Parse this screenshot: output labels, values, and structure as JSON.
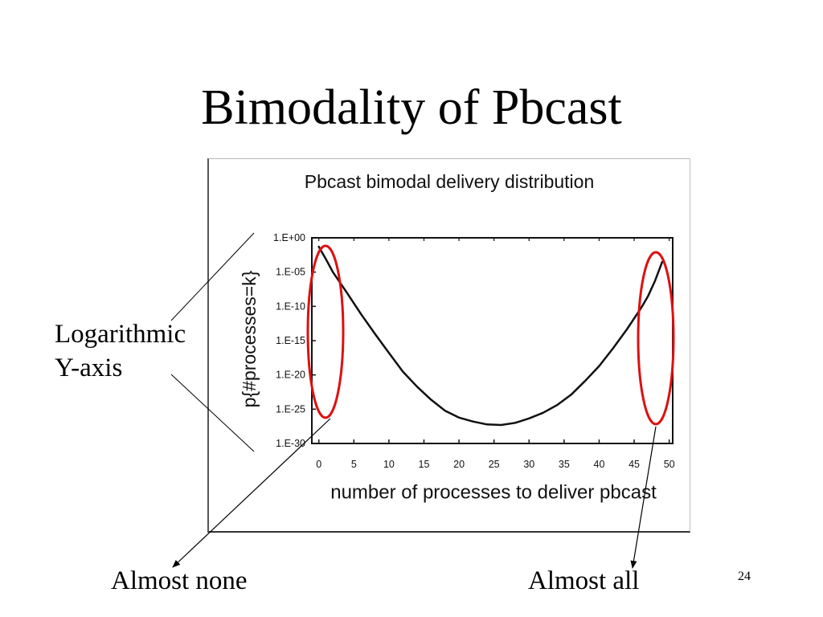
{
  "slide": {
    "title": "Bimodality of Pbcast",
    "page_number": "24"
  },
  "annotations": {
    "y_axis_note": {
      "line1": "Logarithmic",
      "line2": "Y-axis"
    },
    "left_callout": "Almost none",
    "right_callout": "Almost all"
  },
  "colors": {
    "highlight": "#dd1111",
    "curve": "#111111"
  },
  "chart_data": {
    "type": "line",
    "title": "Pbcast bimodal delivery distribution",
    "xlabel": "number of processes to deliver pbcast",
    "ylabel": "p{#processes=k}",
    "y_scale": "log",
    "xlim": [
      -1,
      50.5
    ],
    "ylim": [
      1e-30,
      1
    ],
    "grid": false,
    "x_ticks": [
      0,
      5,
      10,
      15,
      20,
      25,
      30,
      35,
      40,
      45,
      50
    ],
    "x_tick_labels": [
      "0",
      "5",
      "10",
      "15",
      "20",
      "25",
      "30",
      "35",
      "40",
      "45",
      "50"
    ],
    "y_ticks": [
      1,
      1e-05,
      1e-10,
      1e-15,
      1e-20,
      1e-25,
      1e-30
    ],
    "y_tick_labels": [
      "1.E+00",
      "1.E-05",
      "1.E-10",
      "1.E-15",
      "1.E-20",
      "1.E-25",
      "1.E-30"
    ],
    "series": [
      {
        "x": [
          0,
          1,
          2,
          4,
          6,
          8,
          10,
          12,
          14,
          16,
          18,
          20,
          22,
          24,
          26,
          28,
          30,
          32,
          34,
          36,
          38,
          40,
          42,
          44,
          46,
          47,
          48,
          49
        ],
        "y": [
          0.05,
          0.0008,
          1e-05,
          1e-08,
          8e-12,
          1e-14,
          1.6e-17,
          3e-20,
          2e-22,
          2.5e-24,
          6e-26,
          6e-27,
          1.6e-27,
          6e-28,
          5e-28,
          1e-27,
          4.5e-27,
          3e-26,
          4e-25,
          1.3e-23,
          1.3e-21,
          2e-19,
          8e-17,
          5e-14,
          6e-11,
          3.5e-09,
          6e-07,
          0.0003
        ]
      }
    ]
  }
}
